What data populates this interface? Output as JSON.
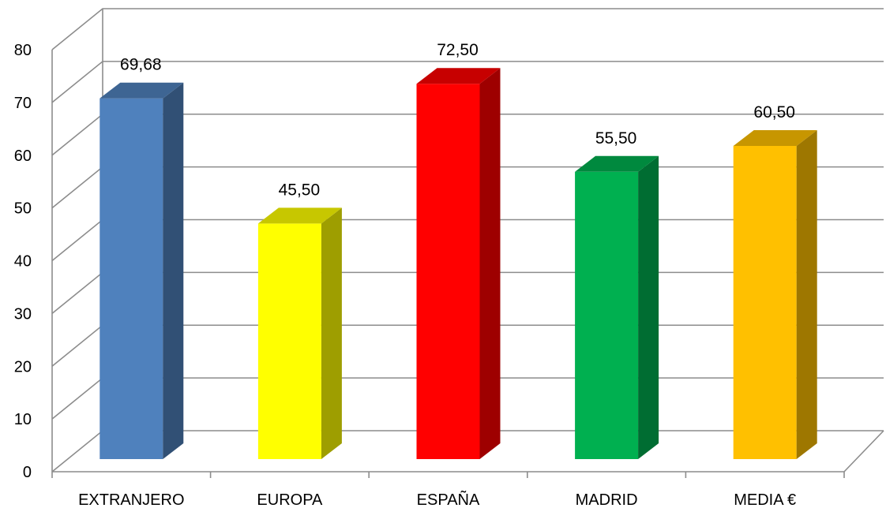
{
  "chart_data": {
    "type": "bar",
    "style": "3d-column",
    "categories": [
      "EXTRANJERO",
      "EUROPA",
      "ESPAÑA",
      "MADRID",
      "MEDIA €"
    ],
    "values": [
      69.68,
      45.5,
      72.5,
      55.5,
      60.5
    ],
    "data_labels": [
      "69,68",
      "45,50",
      "72,50",
      "55,50",
      "60,50"
    ],
    "colors": [
      "#4f81bd",
      "#ffff00",
      "#ff0000",
      "#00b050",
      "#ffc000"
    ],
    "yticks": [
      {
        "value": 0,
        "label": "0"
      },
      {
        "value": 10,
        "label": "10"
      },
      {
        "value": 20,
        "label": "20"
      },
      {
        "value": 30,
        "label": "30"
      },
      {
        "value": 40,
        "label": "40"
      },
      {
        "value": 50,
        "label": "50"
      },
      {
        "value": 60,
        "label": "60"
      },
      {
        "value": 70,
        "label": "70"
      },
      {
        "value": 80,
        "label": "80"
      }
    ],
    "ylim": [
      0,
      80
    ],
    "grid": true,
    "legend": "none",
    "title": "",
    "xlabel": "",
    "ylabel": ""
  }
}
